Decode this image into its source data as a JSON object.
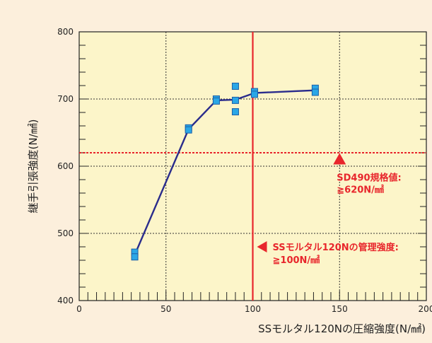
{
  "chart_data": {
    "type": "scatter",
    "title": "",
    "xlabel": "SSモルタル120Nの圧縮強度(N/㎟)",
    "ylabel": "継手引張強度(N/㎟)",
    "xlim": [
      0,
      200
    ],
    "ylim": [
      400,
      800
    ],
    "x_ticks": [
      0,
      50,
      100,
      150,
      200
    ],
    "y_ticks": [
      400,
      500,
      600,
      700,
      800
    ],
    "x_tick_labels": [
      "0",
      "50",
      "100",
      "150",
      "200"
    ],
    "y_tick_labels": [
      "400",
      "500",
      "600",
      "700",
      "800"
    ],
    "grid": true,
    "colors": {
      "background": "#fcefdc",
      "plot_area": "#fcf5c9",
      "line": "#2a2c8c",
      "marker_fill": "#2aa7e6",
      "marker_edge": "#1b5fa8",
      "accent": "#e8262c"
    },
    "points": [
      {
        "x": 32,
        "y": 472
      },
      {
        "x": 32,
        "y": 465
      },
      {
        "x": 63,
        "y": 657
      },
      {
        "x": 63,
        "y": 654
      },
      {
        "x": 79,
        "y": 700
      },
      {
        "x": 79,
        "y": 697
      },
      {
        "x": 90,
        "y": 719
      },
      {
        "x": 90,
        "y": 698
      },
      {
        "x": 90,
        "y": 681
      },
      {
        "x": 101,
        "y": 711
      },
      {
        "x": 101,
        "y": 707
      },
      {
        "x": 136,
        "y": 716
      },
      {
        "x": 136,
        "y": 710
      }
    ],
    "trend_line": {
      "x": [
        32,
        63,
        79,
        90,
        101,
        136
      ],
      "y": [
        468,
        655,
        698,
        699,
        709,
        713
      ]
    },
    "annotations": {
      "vertical": {
        "x": 100,
        "line1": "SSモルタル120Nの管理強度:",
        "line2": "≧100N/㎟"
      },
      "horizontal": {
        "y": 620,
        "line1": "SD490規格値:",
        "line2": "≧620N/㎟",
        "marker_x": 150,
        "marker_y": 610
      }
    }
  }
}
